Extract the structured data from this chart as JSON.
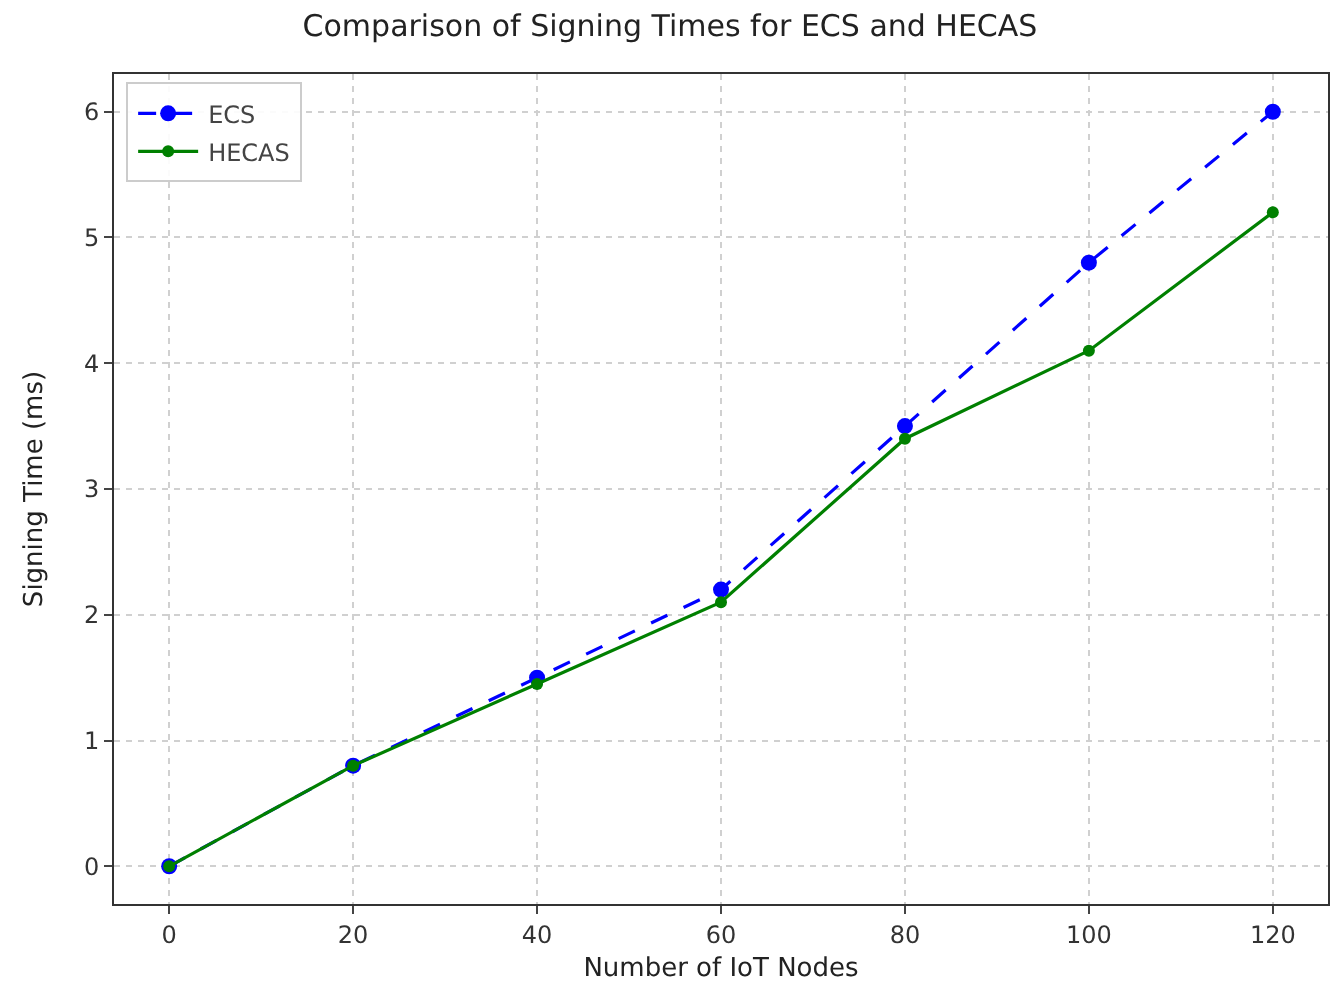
{
  "chart_data": {
    "type": "line",
    "title": "Comparison of Signing Times for ECS and HECAS",
    "xlabel": "Number of IoT Nodes",
    "ylabel": "Signing Time (ms)",
    "x": [
      0,
      20,
      40,
      60,
      80,
      100,
      120
    ],
    "series": [
      {
        "name": "ECS",
        "color": "#0000ff",
        "values": [
          0,
          0.8,
          1.5,
          2.2,
          3.5,
          4.8,
          6.0
        ],
        "line_style": "dashed"
      },
      {
        "name": "HECAS",
        "color": "#008000",
        "values": [
          0,
          0.8,
          1.45,
          2.1,
          3.4,
          4.1,
          5.2
        ],
        "line_style": "solid"
      }
    ],
    "xlim": [
      -6,
      126
    ],
    "xticks": [
      0,
      20,
      40,
      60,
      80,
      100,
      120
    ],
    "ylim": [
      -0.3,
      6.3
    ],
    "yticks": [
      0,
      1,
      2,
      3,
      4,
      5,
      6
    ],
    "grid": true,
    "legend": "top left",
    "marker": "circle"
  }
}
